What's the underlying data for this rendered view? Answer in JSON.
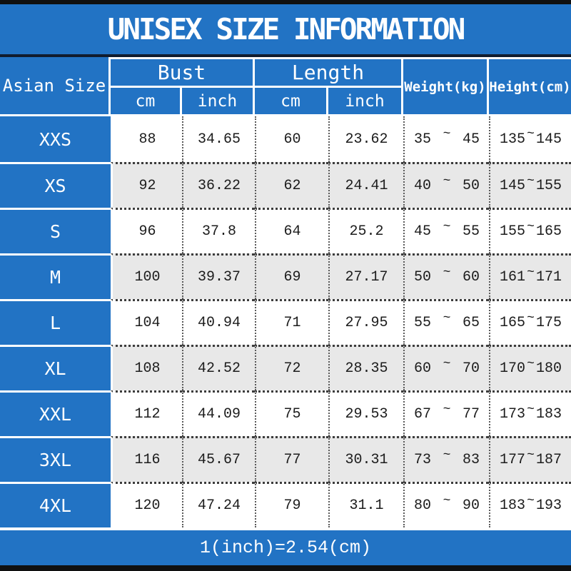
{
  "title": "UNISEX SIZE INFORMATION",
  "footer_note": "1(inch)=2.54(cm)",
  "colors": {
    "primary_blue": "#2273c4",
    "row_alt_gray": "#e8e8e8",
    "frame_black": "#101010",
    "text_dark": "#1c1c1c"
  },
  "table": {
    "tilde": "~",
    "size_column_header": "Asian Size",
    "group_headers": [
      {
        "label": "Bust",
        "sub": [
          "cm",
          "inch"
        ]
      },
      {
        "label": "Length",
        "sub": [
          "cm",
          "inch"
        ]
      }
    ],
    "single_headers": [
      "Weight(kg)",
      "Height(cm)"
    ],
    "rows": [
      {
        "size": "XXS",
        "bust_cm": "88",
        "bust_inch": "34.65",
        "length_cm": "60",
        "length_inch": "23.62",
        "weight_min": "35",
        "weight_max": "45",
        "height_min": "135",
        "height_max": "145"
      },
      {
        "size": "XS",
        "bust_cm": "92",
        "bust_inch": "36.22",
        "length_cm": "62",
        "length_inch": "24.41",
        "weight_min": "40",
        "weight_max": "50",
        "height_min": "145",
        "height_max": "155"
      },
      {
        "size": "S",
        "bust_cm": "96",
        "bust_inch": "37.8",
        "length_cm": "64",
        "length_inch": "25.2",
        "weight_min": "45",
        "weight_max": "55",
        "height_min": "155",
        "height_max": "165"
      },
      {
        "size": "M",
        "bust_cm": "100",
        "bust_inch": "39.37",
        "length_cm": "69",
        "length_inch": "27.17",
        "weight_min": "50",
        "weight_max": "60",
        "height_min": "161",
        "height_max": "171"
      },
      {
        "size": "L",
        "bust_cm": "104",
        "bust_inch": "40.94",
        "length_cm": "71",
        "length_inch": "27.95",
        "weight_min": "55",
        "weight_max": "65",
        "height_min": "165",
        "height_max": "175"
      },
      {
        "size": "XL",
        "bust_cm": "108",
        "bust_inch": "42.52",
        "length_cm": "72",
        "length_inch": "28.35",
        "weight_min": "60",
        "weight_max": "70",
        "height_min": "170",
        "height_max": "180"
      },
      {
        "size": "XXL",
        "bust_cm": "112",
        "bust_inch": "44.09",
        "length_cm": "75",
        "length_inch": "29.53",
        "weight_min": "67",
        "weight_max": "77",
        "height_min": "173",
        "height_max": "183"
      },
      {
        "size": "3XL",
        "bust_cm": "116",
        "bust_inch": "45.67",
        "length_cm": "77",
        "length_inch": "30.31",
        "weight_min": "73",
        "weight_max": "83",
        "height_min": "177",
        "height_max": "187"
      },
      {
        "size": "4XL",
        "bust_cm": "120",
        "bust_inch": "47.24",
        "length_cm": "79",
        "length_inch": "31.1",
        "weight_min": "80",
        "weight_max": "90",
        "height_min": "183",
        "height_max": "193"
      }
    ]
  },
  "chart_data": {
    "type": "table",
    "title": "UNISEX SIZE INFORMATION",
    "columns": [
      "Asian Size",
      "Bust cm",
      "Bust inch",
      "Length cm",
      "Length inch",
      "Weight(kg)",
      "Height(cm)"
    ],
    "rows": [
      [
        "XXS",
        "88",
        "34.65",
        "60",
        "23.62",
        "35~45",
        "135~145"
      ],
      [
        "XS",
        "92",
        "36.22",
        "62",
        "24.41",
        "40~50",
        "145~155"
      ],
      [
        "S",
        "96",
        "37.8",
        "64",
        "25.2",
        "45~55",
        "155~165"
      ],
      [
        "M",
        "100",
        "39.37",
        "69",
        "27.17",
        "50~60",
        "161~171"
      ],
      [
        "L",
        "104",
        "40.94",
        "71",
        "27.95",
        "55~65",
        "165~175"
      ],
      [
        "XL",
        "108",
        "42.52",
        "72",
        "28.35",
        "60~70",
        "170~180"
      ],
      [
        "XXL",
        "112",
        "44.09",
        "75",
        "29.53",
        "67~77",
        "173~183"
      ],
      [
        "3XL",
        "116",
        "45.67",
        "77",
        "30.31",
        "73~83",
        "177~187"
      ],
      [
        "4XL",
        "120",
        "47.24",
        "79",
        "31.1",
        "80~90",
        "183~193"
      ]
    ],
    "footnote": "1(inch)=2.54(cm)"
  }
}
